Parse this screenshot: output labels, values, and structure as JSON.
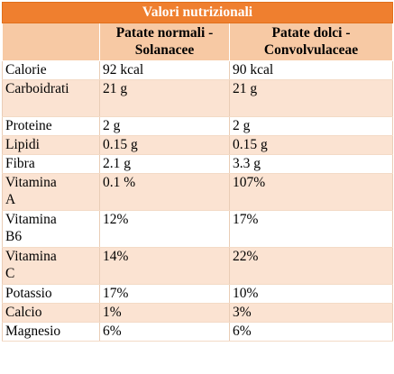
{
  "table": {
    "title": "Valori nutrizionali",
    "columns": [
      "",
      "Patate normali - Solanacee",
      "Patate dolci - Convolvulaceae"
    ],
    "rows": [
      {
        "name": "Calorie",
        "normali": "92 kcal",
        "dolci": "90 kcal"
      },
      {
        "name": "Carboidrati",
        "normali": "21 g",
        "dolci": "21 g"
      },
      {
        "name": "Proteine",
        "normali": "2 g",
        "dolci": "2 g"
      },
      {
        "name": "Lipidi",
        "normali": "0.15 g",
        "dolci": "0.15 g"
      },
      {
        "name": "Fibra",
        "normali": "2.1 g",
        "dolci": "3.3 g"
      },
      {
        "name": "Vitamina A",
        "normali": "0.1 %",
        "dolci": "107%"
      },
      {
        "name": "Vitamina B6",
        "normali": "12%",
        "dolci": "17%"
      },
      {
        "name": "Vitamina C",
        "normali": "14%",
        "dolci": "22%"
      },
      {
        "name": "Potassio",
        "normali": "17%",
        "dolci": "10%"
      },
      {
        "name": "Calcio",
        "normali": "1%",
        "dolci": "3%"
      },
      {
        "name": "Magnesio",
        "normali": "6%",
        "dolci": "6%"
      }
    ]
  },
  "colors": {
    "title_background": "#ef7f2f",
    "header_background": "#f7c9a4",
    "striped_row_background": "#fbe3d2"
  }
}
